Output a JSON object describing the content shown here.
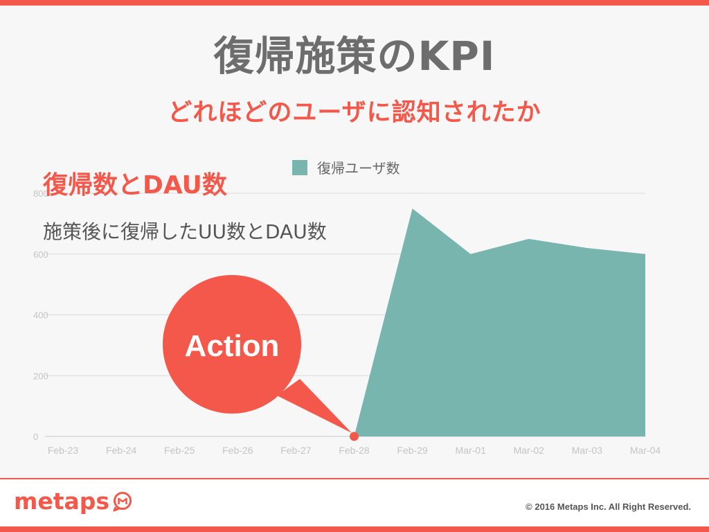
{
  "slide": {
    "title": "復帰施策のKPI",
    "subtitle": "どれほどのユーザに認知されたか",
    "heading": "復帰数とDAU数",
    "description": "施策後に復帰したUU数とDAU数",
    "callout": "Action"
  },
  "colors": {
    "accent": "#f3584a",
    "series": "#78b5af",
    "title": "#6d6d6d",
    "grid": "#dcdcdc",
    "axis_text": "#c4c4c4"
  },
  "chart_data": {
    "type": "area",
    "title": "",
    "xlabel": "",
    "ylabel": "",
    "categories": [
      "Feb-23",
      "Feb-24",
      "Feb-25",
      "Feb-26",
      "Feb-27",
      "Feb-28",
      "Feb-29",
      "Mar-01",
      "Mar-02",
      "Mar-03",
      "Mar-04"
    ],
    "series": [
      {
        "name": "復帰ユーザ数",
        "values": [
          0,
          0,
          0,
          0,
          0,
          0,
          750,
          600,
          650,
          620,
          600
        ]
      }
    ],
    "yticks": [
      "0",
      "200",
      "400",
      "600",
      "800"
    ],
    "ylim": [
      0,
      800
    ],
    "grid": true,
    "legend": "top-center",
    "marked_category": "Feb-28"
  },
  "footer": {
    "logo": "metaps",
    "logo_icon": "m-speech-bubble-icon",
    "copyright": "© 2016 Metaps Inc. All Right Reserved."
  }
}
